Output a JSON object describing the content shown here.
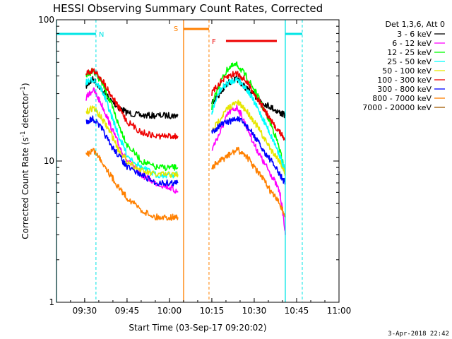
{
  "chart_data": {
    "type": "line",
    "title": "HESSI Observing Summary Count Rates, Corrected",
    "xlabel": "Start Time (03-Sep-17 09:20:02)",
    "ylabel_main": "Corrected Count Rate (s",
    "ylabel_sup": "-1",
    "ylabel_tail": " detector",
    "ylabel_sup2": "-1",
    "ylabel_close": ")",
    "y_scale": "log",
    "ylim": [
      1,
      100
    ],
    "xlim": [
      "09:20:02",
      "11:00:00"
    ],
    "x_ticks": [
      "09:30",
      "09:45",
      "10:00",
      "10:15",
      "10:30",
      "10:45",
      "11:00"
    ],
    "y_ticks": [
      "1",
      "10",
      "100"
    ],
    "legend_title": "Det 1,3,6, Att 0",
    "legend_position": "right",
    "footer": "3-Apr-2018 22:42",
    "markers": [
      {
        "label": "N",
        "color": "#00e5e5",
        "bar_start": "09:20:02",
        "bar_end": "09:34:00",
        "line": "09:34:00",
        "style": "dashed"
      },
      {
        "label": "S",
        "color": "#ff8000",
        "bar_start": "10:05:00",
        "bar_end": "10:14:00",
        "line": "10:14:00",
        "style": "dashed"
      },
      {
        "label": "F",
        "color": "#ee0000",
        "bar_start": "10:20:00",
        "bar_end": "10:38:00",
        "line": "",
        "style": "none"
      },
      {
        "label": "",
        "color": "#00e5e5",
        "bar_start": "10:41:00",
        "bar_end": "10:47:00",
        "line": "10:47:00",
        "style": "dashed"
      }
    ],
    "boundaries": [
      {
        "time": "09:20:02",
        "color": "#00e5e5",
        "style": "solid"
      },
      {
        "time": "10:05:00",
        "color": "#ff8000",
        "style": "solid"
      },
      {
        "time": "10:41:00",
        "color": "#00e5e5",
        "style": "solid"
      }
    ],
    "series": [
      {
        "name": "3 - 6 keV",
        "color": "#000000",
        "seg1": [
          [
            "09:30:30",
            34
          ],
          [
            "09:33",
            38
          ],
          [
            "09:36",
            32
          ],
          [
            "09:39",
            27
          ],
          [
            "09:42",
            24
          ],
          [
            "09:45",
            22
          ],
          [
            "09:50",
            21
          ],
          [
            "09:55",
            21
          ],
          [
            "10:00",
            21
          ],
          [
            "10:03",
            21
          ]
        ],
        "seg2": [
          [
            "10:15",
            26
          ],
          [
            "10:18",
            30
          ],
          [
            "10:21",
            36
          ],
          [
            "10:24",
            38
          ],
          [
            "10:27",
            33
          ],
          [
            "10:30",
            29
          ],
          [
            "10:33",
            26
          ],
          [
            "10:36",
            24
          ],
          [
            "10:39",
            22
          ],
          [
            "10:41",
            21
          ]
        ]
      },
      {
        "name": "6 - 12 keV",
        "color": "#ff00ff",
        "seg1": [
          [
            "09:30:30",
            28
          ],
          [
            "09:33",
            32
          ],
          [
            "09:36",
            25
          ],
          [
            "09:39",
            18
          ],
          [
            "09:42",
            13
          ],
          [
            "09:45",
            10
          ],
          [
            "09:50",
            8
          ],
          [
            "09:55",
            7
          ],
          [
            "10:00",
            6.5
          ],
          [
            "10:03",
            6
          ]
        ],
        "seg2": [
          [
            "10:15",
            12
          ],
          [
            "10:18",
            16
          ],
          [
            "10:21",
            22
          ],
          [
            "10:24",
            24
          ],
          [
            "10:27",
            18
          ],
          [
            "10:30",
            13
          ],
          [
            "10:33",
            10
          ],
          [
            "10:36",
            8
          ],
          [
            "10:39",
            6
          ],
          [
            "10:41",
            3
          ]
        ]
      },
      {
        "name": "12 - 25 keV",
        "color": "#00ff00",
        "seg1": [
          [
            "09:30:30",
            40
          ],
          [
            "09:33",
            44
          ],
          [
            "09:36",
            36
          ],
          [
            "09:39",
            26
          ],
          [
            "09:42",
            18
          ],
          [
            "09:45",
            13
          ],
          [
            "09:50",
            10
          ],
          [
            "09:55",
            9
          ],
          [
            "10:00",
            9
          ],
          [
            "10:03",
            9
          ]
        ],
        "seg2": [
          [
            "10:15",
            24
          ],
          [
            "10:18",
            36
          ],
          [
            "10:21",
            46
          ],
          [
            "10:24",
            48
          ],
          [
            "10:27",
            40
          ],
          [
            "10:30",
            32
          ],
          [
            "10:33",
            24
          ],
          [
            "10:36",
            18
          ],
          [
            "10:39",
            12
          ],
          [
            "10:41",
            8
          ]
        ]
      },
      {
        "name": "25 - 50 keV",
        "color": "#00ffff",
        "seg1": [
          [
            "09:30:30",
            36
          ],
          [
            "09:33",
            38
          ],
          [
            "09:36",
            32
          ],
          [
            "09:39",
            22
          ],
          [
            "09:42",
            15
          ],
          [
            "09:45",
            11
          ],
          [
            "09:50",
            9
          ],
          [
            "09:55",
            8
          ],
          [
            "10:00",
            8
          ],
          [
            "10:03",
            8
          ]
        ],
        "seg2": [
          [
            "10:15",
            22
          ],
          [
            "10:18",
            32
          ],
          [
            "10:21",
            36
          ],
          [
            "10:24",
            38
          ],
          [
            "10:27",
            33
          ],
          [
            "10:30",
            26
          ],
          [
            "10:33",
            20
          ],
          [
            "10:36",
            15
          ],
          [
            "10:39",
            11
          ],
          [
            "10:41",
            8
          ]
        ]
      },
      {
        "name": "50 - 100 keV",
        "color": "#e6e600",
        "seg1": [
          [
            "09:30:30",
            22
          ],
          [
            "09:33",
            24
          ],
          [
            "09:36",
            20
          ],
          [
            "09:39",
            16
          ],
          [
            "09:42",
            12
          ],
          [
            "09:45",
            10
          ],
          [
            "09:50",
            8.5
          ],
          [
            "09:55",
            8
          ],
          [
            "10:00",
            8
          ],
          [
            "10:03",
            8
          ]
        ],
        "seg2": [
          [
            "10:15",
            16
          ],
          [
            "10:18",
            20
          ],
          [
            "10:21",
            24
          ],
          [
            "10:24",
            26
          ],
          [
            "10:27",
            23
          ],
          [
            "10:30",
            19
          ],
          [
            "10:33",
            15
          ],
          [
            "10:36",
            12
          ],
          [
            "10:39",
            10
          ],
          [
            "10:41",
            8
          ]
        ]
      },
      {
        "name": "100 - 300 keV",
        "color": "#ee0000",
        "seg1": [
          [
            "09:30:30",
            42
          ],
          [
            "09:33",
            44
          ],
          [
            "09:36",
            38
          ],
          [
            "09:39",
            30
          ],
          [
            "09:42",
            24
          ],
          [
            "09:45",
            19
          ],
          [
            "09:50",
            16
          ],
          [
            "09:55",
            15
          ],
          [
            "10:00",
            15
          ],
          [
            "10:03",
            15
          ]
        ],
        "seg2": [
          [
            "10:15",
            30
          ],
          [
            "10:18",
            36
          ],
          [
            "10:21",
            40
          ],
          [
            "10:24",
            42
          ],
          [
            "10:27",
            37
          ],
          [
            "10:30",
            30
          ],
          [
            "10:33",
            24
          ],
          [
            "10:36",
            19
          ],
          [
            "10:39",
            16
          ],
          [
            "10:41",
            14
          ]
        ]
      },
      {
        "name": "300 - 800 keV",
        "color": "#0000ff",
        "seg1": [
          [
            "09:30:30",
            19
          ],
          [
            "09:33",
            20
          ],
          [
            "09:36",
            17
          ],
          [
            "09:39",
            13
          ],
          [
            "09:42",
            11
          ],
          [
            "09:45",
            9
          ],
          [
            "09:50",
            8
          ],
          [
            "09:55",
            7
          ],
          [
            "10:00",
            7
          ],
          [
            "10:03",
            7
          ]
        ],
        "seg2": [
          [
            "10:15",
            16
          ],
          [
            "10:18",
            18
          ],
          [
            "10:21",
            19
          ],
          [
            "10:24",
            20
          ],
          [
            "10:27",
            18
          ],
          [
            "10:30",
            15
          ],
          [
            "10:33",
            12
          ],
          [
            "10:36",
            10
          ],
          [
            "10:39",
            8
          ],
          [
            "10:41",
            7
          ]
        ]
      },
      {
        "name": "800 - 7000 keV",
        "color": "#ff8000",
        "seg1": [
          [
            "09:30:30",
            11
          ],
          [
            "09:33",
            12
          ],
          [
            "09:36",
            10
          ],
          [
            "09:39",
            8
          ],
          [
            "09:42",
            6.5
          ],
          [
            "09:45",
            5.5
          ],
          [
            "09:50",
            4.5
          ],
          [
            "09:55",
            4
          ],
          [
            "10:00",
            4
          ],
          [
            "10:03",
            4
          ]
        ],
        "seg2": [
          [
            "10:15",
            9
          ],
          [
            "10:18",
            10
          ],
          [
            "10:21",
            11
          ],
          [
            "10:24",
            12
          ],
          [
            "10:27",
            11
          ],
          [
            "10:30",
            9
          ],
          [
            "10:33",
            7.5
          ],
          [
            "10:36",
            6
          ],
          [
            "10:39",
            5
          ],
          [
            "10:41",
            4
          ]
        ]
      },
      {
        "name": "7000 - 20000 keV",
        "color": "#a05a00",
        "seg1": [],
        "seg2": []
      }
    ]
  }
}
